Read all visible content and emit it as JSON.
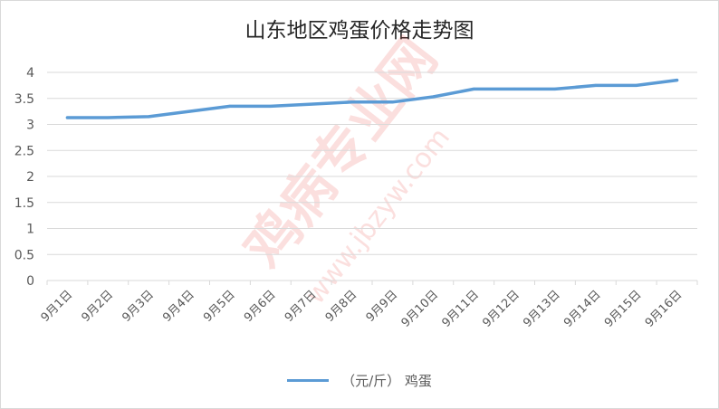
{
  "chart_data": {
    "type": "line",
    "title": "山东地区鸡蛋价格走势图",
    "categories": [
      "9月1日",
      "9月2日",
      "9月3日",
      "9月4日",
      "9月5日",
      "9月6日",
      "9月7日",
      "9月8日",
      "9月9日",
      "9月10日",
      "9月11日",
      "9月12日",
      "9月13日",
      "9月14日",
      "9月15日",
      "9月16日"
    ],
    "series": [
      {
        "name": "（元/斤） 鸡蛋",
        "values": [
          3.13,
          3.13,
          3.15,
          3.25,
          3.35,
          3.35,
          3.39,
          3.43,
          3.43,
          3.53,
          3.68,
          3.68,
          3.68,
          3.75,
          3.75,
          3.85
        ],
        "color": "#5b9bd5"
      }
    ],
    "ylim": [
      0,
      4
    ],
    "yticks": [
      "0",
      "0.5",
      "1",
      "1.5",
      "2",
      "2.5",
      "3",
      "3.5",
      "4"
    ],
    "grid": true,
    "legend_position": "bottom"
  },
  "watermark": {
    "text_main": "鸡病专业网",
    "text_url": "www.jbzyw.com"
  }
}
